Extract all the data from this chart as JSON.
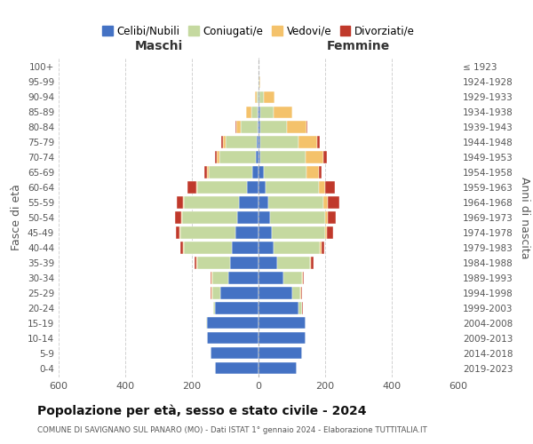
{
  "age_groups": [
    "0-4",
    "5-9",
    "10-14",
    "15-19",
    "20-24",
    "25-29",
    "30-34",
    "35-39",
    "40-44",
    "45-49",
    "50-54",
    "55-59",
    "60-64",
    "65-69",
    "70-74",
    "75-79",
    "80-84",
    "85-89",
    "90-94",
    "95-99",
    "100+"
  ],
  "birth_years": [
    "2019-2023",
    "2014-2018",
    "2009-2013",
    "2004-2008",
    "1999-2003",
    "1994-1998",
    "1989-1993",
    "1984-1988",
    "1979-1983",
    "1974-1978",
    "1969-1973",
    "1964-1968",
    "1959-1963",
    "1954-1958",
    "1949-1953",
    "1944-1948",
    "1939-1943",
    "1934-1938",
    "1929-1933",
    "1924-1928",
    "≤ 1923"
  ],
  "colors": {
    "celibi": "#4472c4",
    "coniugati": "#c5d9a0",
    "vedovi": "#f4c26b",
    "divorziati": "#c0392b"
  },
  "males": {
    "celibi": [
      130,
      145,
      155,
      155,
      130,
      115,
      90,
      85,
      80,
      70,
      65,
      60,
      35,
      20,
      8,
      5,
      3,
      2,
      0,
      0,
      0
    ],
    "coniugati": [
      0,
      0,
      0,
      2,
      5,
      25,
      50,
      100,
      145,
      165,
      165,
      165,
      150,
      130,
      110,
      95,
      50,
      20,
      5,
      1,
      0
    ],
    "vedovi": [
      0,
      0,
      0,
      0,
      1,
      2,
      2,
      2,
      2,
      2,
      2,
      3,
      3,
      5,
      8,
      8,
      15,
      15,
      5,
      0,
      0
    ],
    "divorziati": [
      0,
      0,
      0,
      0,
      1,
      2,
      3,
      5,
      8,
      12,
      20,
      18,
      25,
      8,
      5,
      5,
      2,
      0,
      0,
      0,
      0
    ]
  },
  "females": {
    "nubili": [
      115,
      130,
      140,
      140,
      120,
      100,
      75,
      55,
      45,
      40,
      35,
      30,
      20,
      15,
      5,
      5,
      5,
      5,
      2,
      0,
      0
    ],
    "coniugate": [
      0,
      0,
      0,
      2,
      10,
      25,
      55,
      100,
      140,
      160,
      165,
      165,
      160,
      130,
      135,
      115,
      80,
      40,
      15,
      2,
      1
    ],
    "vedove": [
      0,
      0,
      0,
      0,
      1,
      2,
      2,
      2,
      3,
      5,
      8,
      12,
      20,
      35,
      55,
      55,
      60,
      55,
      30,
      2,
      0
    ],
    "divorziate": [
      0,
      0,
      0,
      0,
      1,
      3,
      5,
      8,
      8,
      20,
      25,
      35,
      30,
      10,
      10,
      8,
      2,
      0,
      0,
      0,
      0
    ]
  },
  "title": "Popolazione per età, sesso e stato civile - 2024",
  "subtitle": "COMUNE DI SAVIGNANO SUL PANARO (MO) - Dati ISTAT 1° gennaio 2024 - Elaborazione TUTTITALIA.IT",
  "xlabel_left": "Maschi",
  "xlabel_right": "Femmine",
  "ylabel_left": "Fasce di età",
  "ylabel_right": "Anni di nascita",
  "legend_labels": [
    "Celibi/Nubili",
    "Coniugati/e",
    "Vedovi/e",
    "Divorziati/e"
  ],
  "xlim": 600,
  "background_color": "#ffffff",
  "grid_color": "#cccccc"
}
